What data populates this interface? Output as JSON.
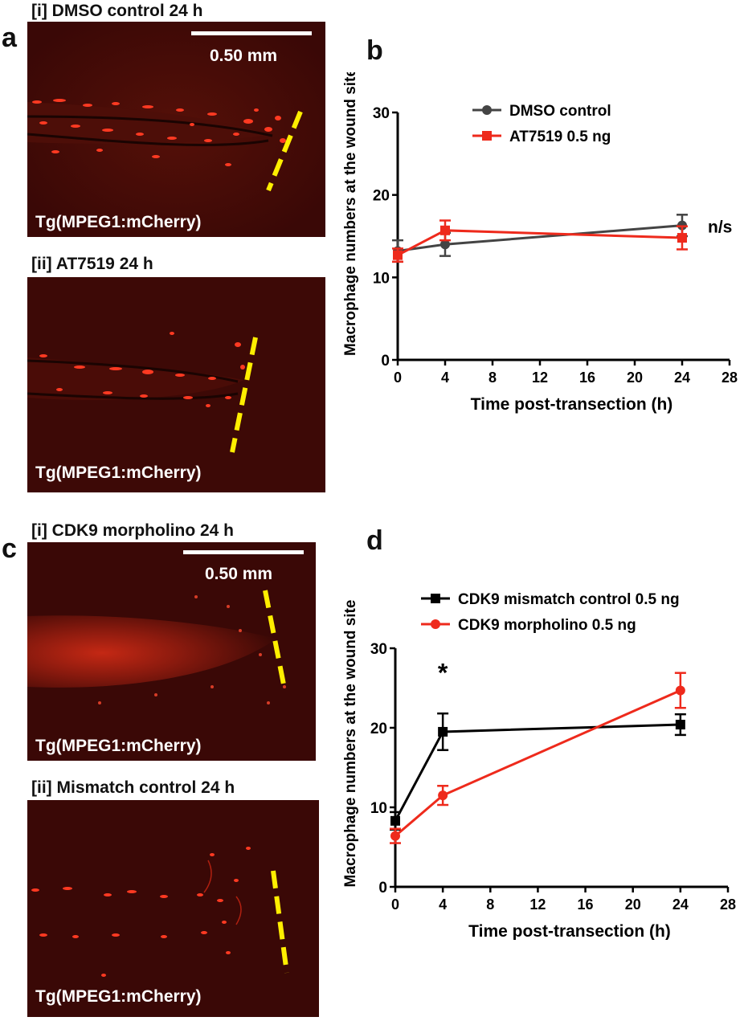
{
  "panels": {
    "a": {
      "label": "a",
      "img1": {
        "title": "[i] DMSO control 24 h",
        "caption": "Tg(MPEG1:mCherry)",
        "scale": "0.50 mm"
      },
      "img2": {
        "title": "[ii] AT7519 24 h",
        "caption": "Tg(MPEG1:mCherry)"
      }
    },
    "c": {
      "label": "c",
      "img1": {
        "title": "[i] CDK9 morpholino 24 h",
        "caption": "Tg(MPEG1:mCherry)",
        "scale": "0.50 mm"
      },
      "img2": {
        "title": "[ii] Mismatch control 24 h",
        "caption": "Tg(MPEG1:mCherry)"
      }
    },
    "b": {
      "label": "b"
    },
    "d": {
      "label": "d"
    }
  },
  "colors": {
    "red": "#ee2a1c",
    "grey": "#444444",
    "black": "#000000",
    "yellow": "#ffee00",
    "micro_bg": "#3a0806"
  },
  "chart_data": [
    {
      "type": "line",
      "xlabel": "Time post-transection (h)",
      "ylabel": "Macrophage numbers at the wound site",
      "xlim": [
        0,
        28
      ],
      "ylim": [
        0,
        30
      ],
      "xticks": [
        0,
        4,
        8,
        12,
        16,
        20,
        24,
        28
      ],
      "yticks": [
        0,
        10,
        20,
        30
      ],
      "legend_position": "top-right",
      "annotation": "n/s",
      "annotation_x": 24,
      "annotation_y": 16.2,
      "series": [
        {
          "name": "DMSO control",
          "color": "#444444",
          "marker": "circle",
          "x": [
            0,
            4,
            24
          ],
          "y": [
            13.2,
            14.0,
            16.3
          ],
          "err": [
            1.3,
            1.4,
            1.3
          ]
        },
        {
          "name": "AT7519 0.5 ng",
          "color": "#ee2a1c",
          "marker": "square",
          "x": [
            0,
            4,
            24
          ],
          "y": [
            12.7,
            15.7,
            14.8
          ],
          "err": [
            0.8,
            1.2,
            1.4
          ]
        }
      ]
    },
    {
      "type": "line",
      "xlabel": "Time post-transection (h)",
      "ylabel": "Macrophage numbers at the wound site",
      "xlim": [
        0,
        28
      ],
      "ylim": [
        0,
        30
      ],
      "xticks": [
        0,
        4,
        8,
        12,
        16,
        20,
        24,
        28
      ],
      "yticks": [
        0,
        10,
        20,
        30
      ],
      "legend_position": "top-left",
      "annotation": "*",
      "annotation_x": 4,
      "annotation_y": 26.6,
      "series": [
        {
          "name": "CDK9 mismatch control 0.5 ng",
          "color": "#000000",
          "marker": "square",
          "x": [
            0,
            4,
            24
          ],
          "y": [
            8.3,
            19.5,
            20.4
          ],
          "err": [
            1.1,
            2.3,
            1.3
          ]
        },
        {
          "name": "CDK9 morpholino 0.5 ng",
          "color": "#ee2a1c",
          "marker": "circle",
          "x": [
            0,
            4,
            24
          ],
          "y": [
            6.4,
            11.5,
            24.7
          ],
          "err": [
            0.9,
            1.2,
            2.2
          ]
        }
      ]
    }
  ]
}
